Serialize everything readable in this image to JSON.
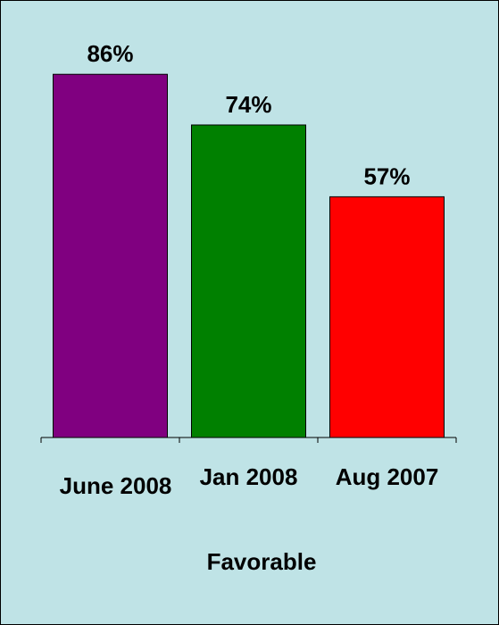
{
  "chart_data": {
    "type": "bar",
    "categories": [
      "June 2008",
      "Jan 2008",
      "Aug 2007"
    ],
    "values": [
      86,
      74,
      57
    ],
    "value_labels": [
      "86%",
      "74%",
      "57%"
    ],
    "colors": [
      "#800080",
      "#008000",
      "#ff0000"
    ],
    "xlabel": "Favorable",
    "ylabel": "",
    "ylim": [
      0,
      100
    ],
    "grid": false,
    "legend": "none",
    "background_color": "#bfe3e6"
  }
}
